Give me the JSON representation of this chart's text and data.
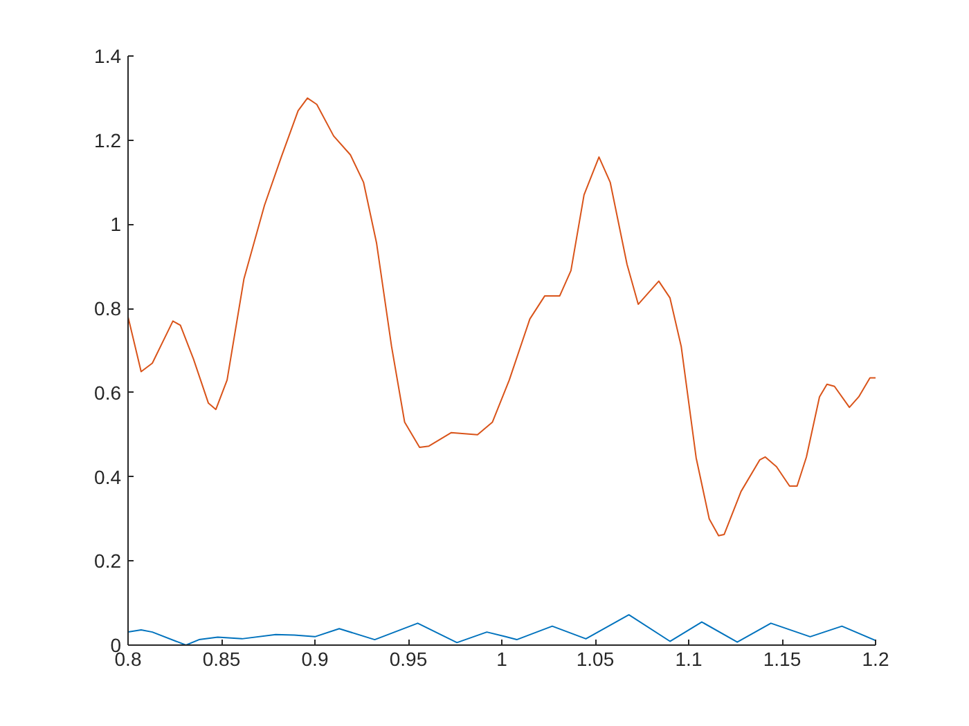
{
  "chart_data": {
    "type": "line",
    "xlim": [
      0.8,
      1.2
    ],
    "ylim": [
      0,
      1.4
    ],
    "xticks": [
      0.8,
      0.85,
      0.9,
      0.95,
      1,
      1.05,
      1.1,
      1.15,
      1.2
    ],
    "yticks": [
      0,
      0.2,
      0.4,
      0.6,
      0.8,
      1,
      1.2,
      1.4
    ],
    "grid": false,
    "series": [
      {
        "color": "#0072bd",
        "x": [
          0.8,
          0.807,
          0.813,
          0.831,
          0.838,
          0.848,
          0.861,
          0.879,
          0.889,
          0.9,
          0.913,
          0.932,
          0.955,
          0.976,
          0.992,
          1.002,
          1.008,
          1.027,
          1.045,
          1.068,
          1.09,
          1.107,
          1.126,
          1.144,
          1.165,
          1.182,
          1.2
        ],
        "values": [
          0.031,
          0.036,
          0.031,
          0.0,
          0.013,
          0.019,
          0.015,
          0.025,
          0.024,
          0.02,
          0.039,
          0.013,
          0.052,
          0.006,
          0.031,
          0.02,
          0.013,
          0.045,
          0.015,
          0.072,
          0.009,
          0.055,
          0.007,
          0.052,
          0.02,
          0.045,
          0.011
        ]
      },
      {
        "color": "#d95319",
        "x": [
          0.8,
          0.807,
          0.813,
          0.824,
          0.828,
          0.835,
          0.843,
          0.847,
          0.853,
          0.862,
          0.873,
          0.882,
          0.891,
          0.896,
          0.901,
          0.91,
          0.919,
          0.926,
          0.933,
          0.941,
          0.948,
          0.956,
          0.961,
          0.973,
          0.987,
          0.995,
          1.004,
          1.015,
          1.023,
          1.031,
          1.037,
          1.044,
          1.052,
          1.058,
          1.067,
          1.073,
          1.078,
          1.084,
          1.09,
          1.096,
          1.104,
          1.111,
          1.116,
          1.119,
          1.128,
          1.138,
          1.141,
          1.147,
          1.154,
          1.158,
          1.163,
          1.17,
          1.174,
          1.178,
          1.186,
          1.191,
          1.197,
          1.2
        ],
        "values": [
          0.78,
          0.65,
          0.67,
          0.77,
          0.76,
          0.68,
          0.575,
          0.56,
          0.63,
          0.87,
          1.045,
          1.16,
          1.27,
          1.3,
          1.285,
          1.21,
          1.165,
          1.1,
          0.955,
          0.71,
          0.53,
          0.47,
          0.473,
          0.505,
          0.5,
          0.53,
          0.63,
          0.775,
          0.83,
          0.83,
          0.89,
          1.07,
          1.16,
          1.1,
          0.905,
          0.81,
          0.835,
          0.865,
          0.825,
          0.71,
          0.445,
          0.3,
          0.26,
          0.263,
          0.365,
          0.44,
          0.447,
          0.424,
          0.378,
          0.378,
          0.447,
          0.59,
          0.62,
          0.615,
          0.565,
          0.59,
          0.635,
          0.635
        ]
      }
    ]
  }
}
